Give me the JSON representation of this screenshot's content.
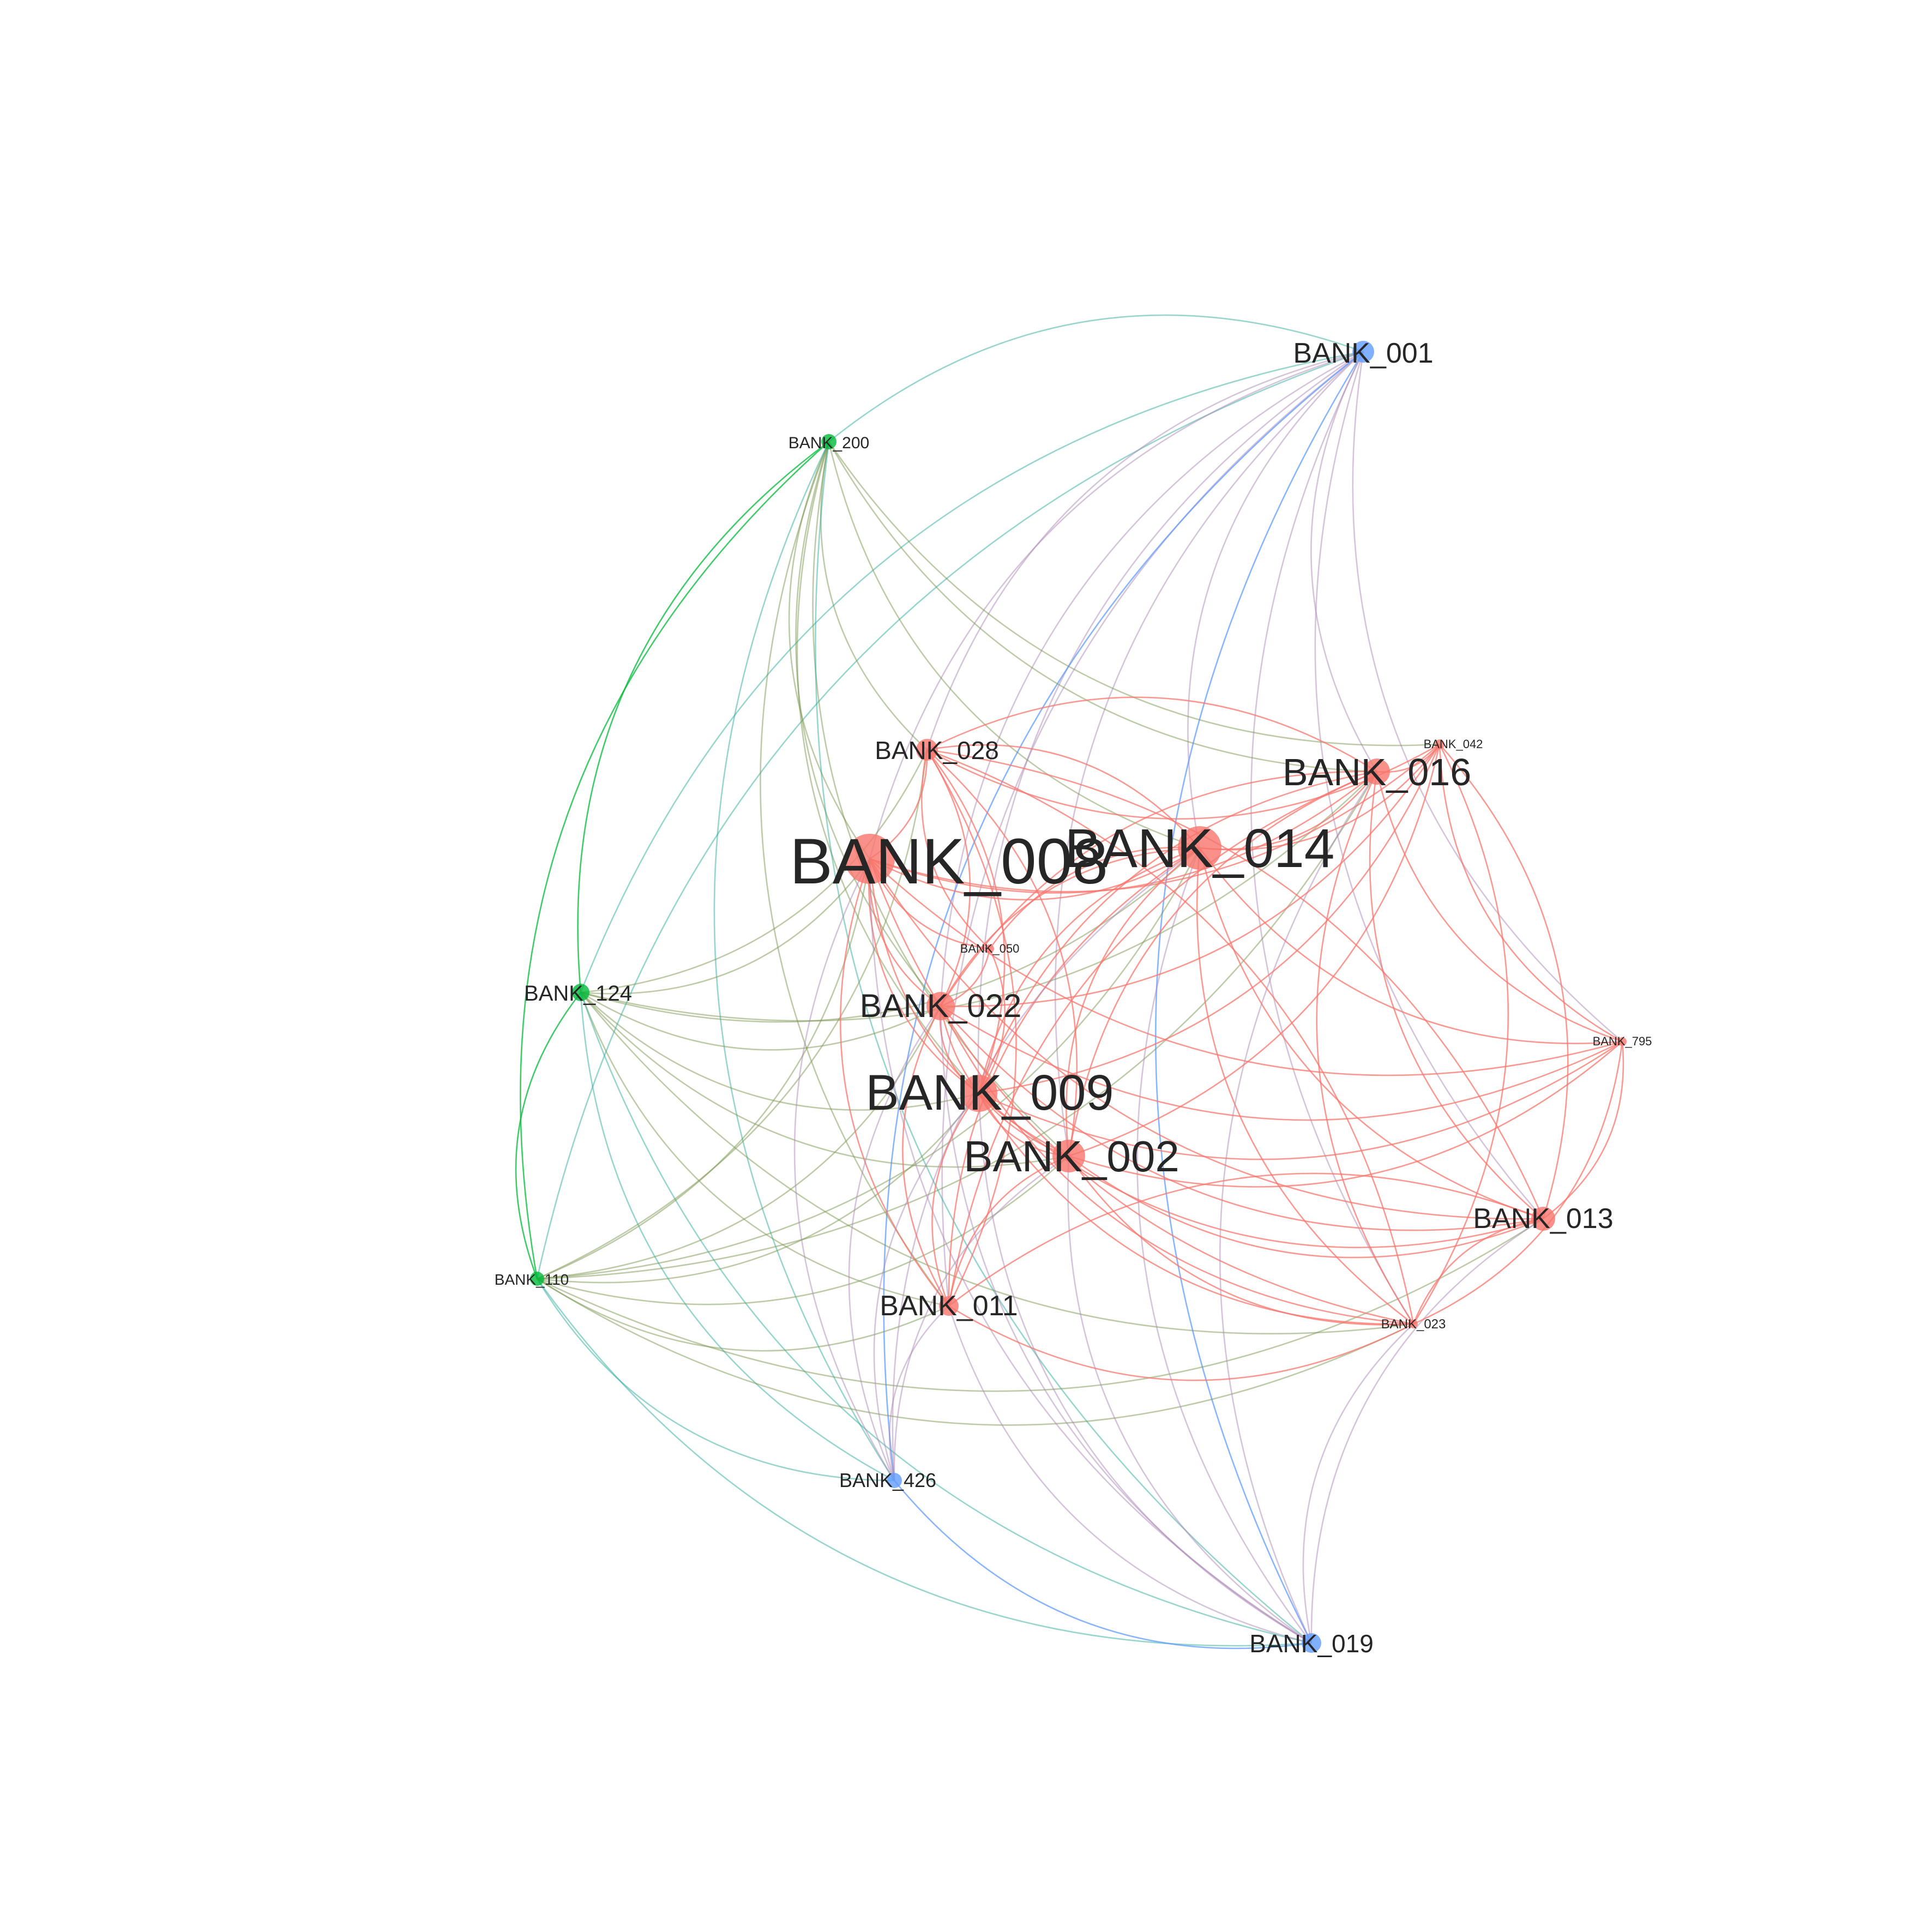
{
  "nodes": [
    {
      "id": "BANK_001",
      "label": "BANK_001",
      "community": "blue"
    },
    {
      "id": "BANK_200",
      "label": "BANK_200",
      "community": "green"
    },
    {
      "id": "BANK_124",
      "label": "BANK_124",
      "community": "green"
    },
    {
      "id": "BANK_110",
      "label": "BANK_110",
      "community": "green"
    },
    {
      "id": "BANK_028",
      "label": "BANK_028",
      "community": "red"
    },
    {
      "id": "BANK_042",
      "label": "BANK_042",
      "community": "red"
    },
    {
      "id": "BANK_016",
      "label": "BANK_016",
      "community": "red"
    },
    {
      "id": "BANK_008",
      "label": "BANK_008",
      "community": "red"
    },
    {
      "id": "BANK_014",
      "label": "BANK_014",
      "community": "red"
    },
    {
      "id": "BANK_050",
      "label": "BANK_050",
      "community": "red"
    },
    {
      "id": "BANK_022",
      "label": "BANK_022",
      "community": "red"
    },
    {
      "id": "BANK_795",
      "label": "BANK_795",
      "community": "red"
    },
    {
      "id": "BANK_009",
      "label": "BANK_009",
      "community": "red"
    },
    {
      "id": "BANK_002",
      "label": "BANK_002",
      "community": "red"
    },
    {
      "id": "BANK_013",
      "label": "BANK_013",
      "community": "red"
    },
    {
      "id": "BANK_011",
      "label": "BANK_011",
      "community": "red"
    },
    {
      "id": "BANK_023",
      "label": "BANK_023",
      "community": "red"
    },
    {
      "id": "BANK_426",
      "label": "BANK_426",
      "community": "blue"
    },
    {
      "id": "BANK_019",
      "label": "BANK_019",
      "community": "blue"
    }
  ],
  "community_colors": {
    "red": "#f8766d",
    "green": "#00ba38",
    "blue": "#619cff"
  },
  "edges": [
    [
      "BANK_001",
      "BANK_200"
    ],
    [
      "BANK_001",
      "BANK_124"
    ],
    [
      "BANK_001",
      "BANK_110"
    ],
    [
      "BANK_001",
      "BANK_008"
    ],
    [
      "BANK_001",
      "BANK_014"
    ],
    [
      "BANK_001",
      "BANK_022"
    ],
    [
      "BANK_001",
      "BANK_009"
    ],
    [
      "BANK_001",
      "BANK_002"
    ],
    [
      "BANK_001",
      "BANK_011"
    ],
    [
      "BANK_001",
      "BANK_426"
    ],
    [
      "BANK_001",
      "BANK_019"
    ],
    [
      "BANK_001",
      "BANK_028"
    ],
    [
      "BANK_001",
      "BANK_016"
    ],
    [
      "BANK_001",
      "BANK_795"
    ],
    [
      "BANK_001",
      "BANK_013"
    ],
    [
      "BANK_001",
      "BANK_023"
    ],
    [
      "BANK_200",
      "BANK_124"
    ],
    [
      "BANK_200",
      "BANK_110"
    ],
    [
      "BANK_200",
      "BANK_008"
    ],
    [
      "BANK_200",
      "BANK_014"
    ],
    [
      "BANK_200",
      "BANK_022"
    ],
    [
      "BANK_200",
      "BANK_009"
    ],
    [
      "BANK_200",
      "BANK_002"
    ],
    [
      "BANK_200",
      "BANK_011"
    ],
    [
      "BANK_200",
      "BANK_028"
    ],
    [
      "BANK_200",
      "BANK_016"
    ],
    [
      "BANK_200",
      "BANK_426"
    ],
    [
      "BANK_200",
      "BANK_019"
    ],
    [
      "BANK_200",
      "BANK_042"
    ],
    [
      "BANK_124",
      "BANK_110"
    ],
    [
      "BANK_124",
      "BANK_008"
    ],
    [
      "BANK_124",
      "BANK_014"
    ],
    [
      "BANK_124",
      "BANK_022"
    ],
    [
      "BANK_124",
      "BANK_009"
    ],
    [
      "BANK_124",
      "BANK_002"
    ],
    [
      "BANK_124",
      "BANK_011"
    ],
    [
      "BANK_124",
      "BANK_426"
    ],
    [
      "BANK_124",
      "BANK_019"
    ],
    [
      "BANK_124",
      "BANK_028"
    ],
    [
      "BANK_124",
      "BANK_016"
    ],
    [
      "BANK_124",
      "BANK_023"
    ],
    [
      "BANK_110",
      "BANK_008"
    ],
    [
      "BANK_110",
      "BANK_014"
    ],
    [
      "BANK_110",
      "BANK_022"
    ],
    [
      "BANK_110",
      "BANK_009"
    ],
    [
      "BANK_110",
      "BANK_002"
    ],
    [
      "BANK_110",
      "BANK_011"
    ],
    [
      "BANK_110",
      "BANK_426"
    ],
    [
      "BANK_110",
      "BANK_019"
    ],
    [
      "BANK_110",
      "BANK_028"
    ],
    [
      "BANK_110",
      "BANK_016"
    ],
    [
      "BANK_110",
      "BANK_013"
    ],
    [
      "BANK_110",
      "BANK_023"
    ],
    [
      "BANK_008",
      "BANK_014"
    ],
    [
      "BANK_008",
      "BANK_016"
    ],
    [
      "BANK_008",
      "BANK_022"
    ],
    [
      "BANK_008",
      "BANK_009"
    ],
    [
      "BANK_008",
      "BANK_002"
    ],
    [
      "BANK_008",
      "BANK_011"
    ],
    [
      "BANK_008",
      "BANK_013"
    ],
    [
      "BANK_008",
      "BANK_023"
    ],
    [
      "BANK_008",
      "BANK_028"
    ],
    [
      "BANK_008",
      "BANK_042"
    ],
    [
      "BANK_008",
      "BANK_795"
    ],
    [
      "BANK_008",
      "BANK_050"
    ],
    [
      "BANK_008",
      "BANK_019"
    ],
    [
      "BANK_008",
      "BANK_426"
    ],
    [
      "BANK_014",
      "BANK_016"
    ],
    [
      "BANK_014",
      "BANK_022"
    ],
    [
      "BANK_014",
      "BANK_009"
    ],
    [
      "BANK_014",
      "BANK_002"
    ],
    [
      "BANK_014",
      "BANK_011"
    ],
    [
      "BANK_014",
      "BANK_013"
    ],
    [
      "BANK_014",
      "BANK_023"
    ],
    [
      "BANK_014",
      "BANK_028"
    ],
    [
      "BANK_014",
      "BANK_042"
    ],
    [
      "BANK_014",
      "BANK_795"
    ],
    [
      "BANK_014",
      "BANK_050"
    ],
    [
      "BANK_014",
      "BANK_019"
    ],
    [
      "BANK_014",
      "BANK_426"
    ],
    [
      "BANK_016",
      "BANK_022"
    ],
    [
      "BANK_016",
      "BANK_009"
    ],
    [
      "BANK_016",
      "BANK_002"
    ],
    [
      "BANK_016",
      "BANK_011"
    ],
    [
      "BANK_016",
      "BANK_013"
    ],
    [
      "BANK_016",
      "BANK_023"
    ],
    [
      "BANK_016",
      "BANK_028"
    ],
    [
      "BANK_016",
      "BANK_042"
    ],
    [
      "BANK_016",
      "BANK_795"
    ],
    [
      "BANK_016",
      "BANK_019"
    ],
    [
      "BANK_022",
      "BANK_009"
    ],
    [
      "BANK_022",
      "BANK_002"
    ],
    [
      "BANK_022",
      "BANK_011"
    ],
    [
      "BANK_022",
      "BANK_013"
    ],
    [
      "BANK_022",
      "BANK_023"
    ],
    [
      "BANK_022",
      "BANK_028"
    ],
    [
      "BANK_022",
      "BANK_042"
    ],
    [
      "BANK_022",
      "BANK_795"
    ],
    [
      "BANK_022",
      "BANK_050"
    ],
    [
      "BANK_022",
      "BANK_019"
    ],
    [
      "BANK_022",
      "BANK_426"
    ],
    [
      "BANK_009",
      "BANK_002"
    ],
    [
      "BANK_009",
      "BANK_011"
    ],
    [
      "BANK_009",
      "BANK_013"
    ],
    [
      "BANK_009",
      "BANK_023"
    ],
    [
      "BANK_009",
      "BANK_028"
    ],
    [
      "BANK_009",
      "BANK_042"
    ],
    [
      "BANK_009",
      "BANK_795"
    ],
    [
      "BANK_009",
      "BANK_050"
    ],
    [
      "BANK_009",
      "BANK_019"
    ],
    [
      "BANK_009",
      "BANK_426"
    ],
    [
      "BANK_002",
      "BANK_011"
    ],
    [
      "BANK_002",
      "BANK_013"
    ],
    [
      "BANK_002",
      "BANK_023"
    ],
    [
      "BANK_002",
      "BANK_028"
    ],
    [
      "BANK_002",
      "BANK_042"
    ],
    [
      "BANK_002",
      "BANK_795"
    ],
    [
      "BANK_002",
      "BANK_019"
    ],
    [
      "BANK_002",
      "BANK_426"
    ],
    [
      "BANK_013",
      "BANK_023"
    ],
    [
      "BANK_013",
      "BANK_042"
    ],
    [
      "BANK_013",
      "BANK_795"
    ],
    [
      "BANK_013",
      "BANK_011"
    ],
    [
      "BANK_013",
      "BANK_019"
    ],
    [
      "BANK_013",
      "BANK_028"
    ],
    [
      "BANK_011",
      "BANK_023"
    ],
    [
      "BANK_011",
      "BANK_028"
    ],
    [
      "BANK_011",
      "BANK_426"
    ],
    [
      "BANK_011",
      "BANK_019"
    ],
    [
      "BANK_023",
      "BANK_042"
    ],
    [
      "BANK_023",
      "BANK_795"
    ],
    [
      "BANK_023",
      "BANK_019"
    ],
    [
      "BANK_023",
      "BANK_028"
    ],
    [
      "BANK_028",
      "BANK_042"
    ],
    [
      "BANK_028",
      "BANK_050"
    ],
    [
      "BANK_042",
      "BANK_795"
    ],
    [
      "BANK_426",
      "BANK_019"
    ]
  ]
}
